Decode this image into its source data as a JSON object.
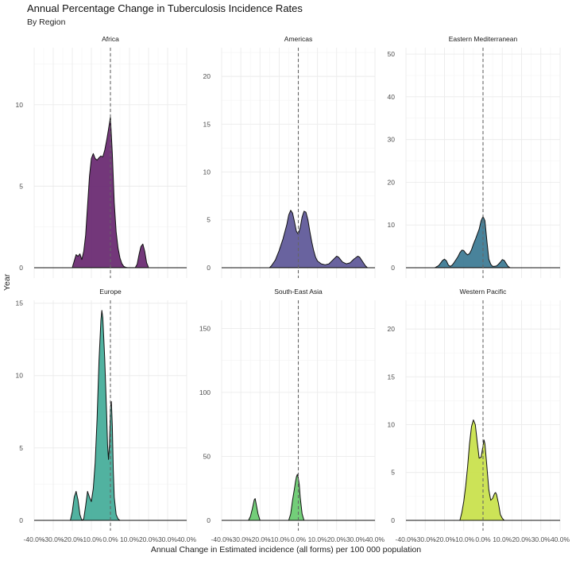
{
  "title": "Annual Percentage Change in Tuberculosis Incidence Rates",
  "subtitle": "By Region",
  "xlabel": "Annual Change in Estimated incidence (all forms) per 100 000 population",
  "ylabel": "Year",
  "colors": {
    "Africa": "#6b2c73",
    "Americas": "#615b9a",
    "Eastern Mediterranean": "#3f7c96",
    "Europe": "#48ae9b",
    "South-East Asia": "#6ccb72",
    "Western Pacific": "#c9e24e"
  },
  "chart_data": {
    "type": "area",
    "subtype": "density, faceted by region",
    "xlim": [
      -40,
      40
    ],
    "x_ticks": [
      "-40.0%",
      "-30.0%",
      "-20.0%",
      "-10.0%",
      "0.0%",
      "10.0%",
      "20.0%",
      "30.0%",
      "40.0%"
    ],
    "reference_line": {
      "x": 0,
      "style": "dashed"
    },
    "grid": true,
    "panels": [
      {
        "name": "Africa",
        "ylim": [
          0,
          13.5
        ],
        "y_ticks": [
          0,
          5,
          10
        ],
        "points": [
          [
            -20,
            0
          ],
          [
            -19,
            0.4
          ],
          [
            -18,
            0.8
          ],
          [
            -17,
            0.7
          ],
          [
            -16,
            0.85
          ],
          [
            -15,
            0.5
          ],
          [
            -14,
            1.0
          ],
          [
            -13,
            2.0
          ],
          [
            -12,
            3.8
          ],
          [
            -11,
            5.6
          ],
          [
            -10,
            6.7
          ],
          [
            -9,
            7.0
          ],
          [
            -8,
            6.7
          ],
          [
            -7,
            6.6
          ],
          [
            -6,
            6.75
          ],
          [
            -5,
            6.85
          ],
          [
            -4,
            6.8
          ],
          [
            -3,
            7.2
          ],
          [
            -2,
            7.8
          ],
          [
            -1,
            8.5
          ],
          [
            0,
            9.25
          ],
          [
            1,
            7.0
          ],
          [
            2,
            4.0
          ],
          [
            3,
            2.2
          ],
          [
            4,
            1.2
          ],
          [
            5,
            0.6
          ],
          [
            6,
            0.25
          ],
          [
            7,
            0.08
          ],
          [
            8,
            0.02
          ],
          [
            9,
            0
          ],
          [
            13,
            0
          ],
          [
            14,
            0.2
          ],
          [
            15,
            0.8
          ],
          [
            16,
            1.3
          ],
          [
            17,
            1.45
          ],
          [
            18,
            1.0
          ],
          [
            19,
            0.3
          ],
          [
            20,
            0
          ]
        ]
      },
      {
        "name": "Americas",
        "ylim": [
          0,
          23
        ],
        "y_ticks": [
          0,
          5,
          10,
          15,
          20
        ],
        "points": [
          [
            -15,
            0
          ],
          [
            -14,
            0.2
          ],
          [
            -12,
            0.8
          ],
          [
            -10,
            1.8
          ],
          [
            -8,
            3.0
          ],
          [
            -6,
            4.5
          ],
          [
            -5,
            5.5
          ],
          [
            -4,
            6.0
          ],
          [
            -3,
            5.7
          ],
          [
            -2,
            4.8
          ],
          [
            -1,
            3.8
          ],
          [
            0,
            3.5
          ],
          [
            1,
            4.2
          ],
          [
            2,
            5.3
          ],
          [
            3,
            5.9
          ],
          [
            4,
            5.8
          ],
          [
            5,
            5.0
          ],
          [
            6,
            3.8
          ],
          [
            7,
            2.7
          ],
          [
            8,
            1.8
          ],
          [
            9,
            1.1
          ],
          [
            10,
            0.7
          ],
          [
            12,
            0.4
          ],
          [
            14,
            0.3
          ],
          [
            16,
            0.4
          ],
          [
            18,
            0.8
          ],
          [
            20,
            1.2
          ],
          [
            21,
            1.1
          ],
          [
            23,
            0.6
          ],
          [
            25,
            0.4
          ],
          [
            27,
            0.5
          ],
          [
            29,
            0.9
          ],
          [
            31,
            1.2
          ],
          [
            32,
            1.1
          ],
          [
            34,
            0.5
          ],
          [
            35,
            0.2
          ],
          [
            36,
            0
          ]
        ]
      },
      {
        "name": "Eastern Mediterranean",
        "ylim": [
          0,
          51.5
        ],
        "y_ticks": [
          0,
          10,
          20,
          30,
          40,
          50
        ],
        "points": [
          [
            -25,
            0
          ],
          [
            -23,
            0.5
          ],
          [
            -21,
            1.7
          ],
          [
            -20,
            2.0
          ],
          [
            -19,
            1.6
          ],
          [
            -18,
            0.6
          ],
          [
            -17,
            0.3
          ],
          [
            -16,
            0.6
          ],
          [
            -15,
            1.2
          ],
          [
            -13,
            2.6
          ],
          [
            -12,
            3.5
          ],
          [
            -11,
            4.1
          ],
          [
            -10,
            4.0
          ],
          [
            -9,
            3.4
          ],
          [
            -8,
            3.0
          ],
          [
            -7,
            3.3
          ],
          [
            -6,
            4.2
          ],
          [
            -5,
            5.5
          ],
          [
            -4,
            6.6
          ],
          [
            -3,
            7.8
          ],
          [
            -2,
            9.0
          ],
          [
            -1,
            11.0
          ],
          [
            0,
            12.0
          ],
          [
            1,
            11.0
          ],
          [
            2,
            6.2
          ],
          [
            3,
            2.0
          ],
          [
            4,
            0.8
          ],
          [
            5,
            0.3
          ],
          [
            6,
            0.3
          ],
          [
            7,
            0.4
          ],
          [
            8,
            0.8
          ],
          [
            9,
            1.3
          ],
          [
            10,
            1.9
          ],
          [
            11,
            1.7
          ],
          [
            12,
            1.0
          ],
          [
            13,
            0.3
          ],
          [
            14,
            0
          ]
        ]
      },
      {
        "name": "Europe",
        "ylim": [
          0,
          15.2
        ],
        "y_ticks": [
          0,
          5,
          10,
          15
        ],
        "points": [
          [
            -21,
            0
          ],
          [
            -20,
            0.6
          ],
          [
            -19,
            1.6
          ],
          [
            -18,
            2.0
          ],
          [
            -17,
            1.4
          ],
          [
            -16,
            0.4
          ],
          [
            -15,
            0
          ],
          [
            -14,
            0.1
          ],
          [
            -13,
            1.0
          ],
          [
            -12,
            2.0
          ],
          [
            -11,
            1.6
          ],
          [
            -10,
            1.3
          ],
          [
            -9,
            2.2
          ],
          [
            -8,
            4.0
          ],
          [
            -7,
            7.0
          ],
          [
            -6,
            11.0
          ],
          [
            -5,
            13.8
          ],
          [
            -4.5,
            14.5
          ],
          [
            -4,
            14.0
          ],
          [
            -3,
            11.2
          ],
          [
            -2,
            7.4
          ],
          [
            -1.5,
            5.2
          ],
          [
            -1,
            4.2
          ],
          [
            -0.5,
            5.2
          ],
          [
            0,
            7.8
          ],
          [
            0.5,
            8.2
          ],
          [
            1,
            6.5
          ],
          [
            1.5,
            3.5
          ],
          [
            2,
            1.6
          ],
          [
            3,
            0.4
          ],
          [
            4,
            0.1
          ],
          [
            5,
            0
          ]
        ]
      },
      {
        "name": "South-East Asia",
        "ylim": [
          0,
          172
        ],
        "y_ticks": [
          0,
          50,
          100,
          150
        ],
        "points": [
          [
            -26,
            0
          ],
          [
            -25,
            3
          ],
          [
            -24,
            9
          ],
          [
            -23,
            16
          ],
          [
            -22.5,
            17
          ],
          [
            -22,
            13
          ],
          [
            -21,
            5
          ],
          [
            -20,
            0
          ],
          [
            -5,
            0
          ],
          [
            -4,
            5
          ],
          [
            -3,
            16
          ],
          [
            -2,
            25
          ],
          [
            -1.5,
            30
          ],
          [
            -1,
            34
          ],
          [
            -0.5,
            36
          ],
          [
            0,
            33
          ],
          [
            0.5,
            28
          ],
          [
            1,
            18
          ],
          [
            2,
            5
          ],
          [
            3,
            0
          ]
        ]
      },
      {
        "name": "Western Pacific",
        "ylim": [
          0,
          23
        ],
        "y_ticks": [
          0,
          5,
          10,
          15,
          20
        ],
        "points": [
          [
            -12,
            0
          ],
          [
            -11,
            0.8
          ],
          [
            -10,
            2.0
          ],
          [
            -9,
            3.6
          ],
          [
            -8,
            5.6
          ],
          [
            -7,
            8.0
          ],
          [
            -6,
            9.8
          ],
          [
            -5,
            10.5
          ],
          [
            -4,
            10.0
          ],
          [
            -3,
            8.2
          ],
          [
            -2,
            6.5
          ],
          [
            -1,
            6.6
          ],
          [
            0,
            7.8
          ],
          [
            0.5,
            8.4
          ],
          [
            1,
            8.0
          ],
          [
            2,
            5.6
          ],
          [
            3,
            3.2
          ],
          [
            4,
            2.1
          ],
          [
            5,
            2.3
          ],
          [
            6,
            2.8
          ],
          [
            6.5,
            2.9
          ],
          [
            7,
            2.7
          ],
          [
            8,
            1.8
          ],
          [
            9,
            0.6
          ],
          [
            10,
            0.2
          ],
          [
            11,
            0
          ]
        ]
      }
    ]
  }
}
